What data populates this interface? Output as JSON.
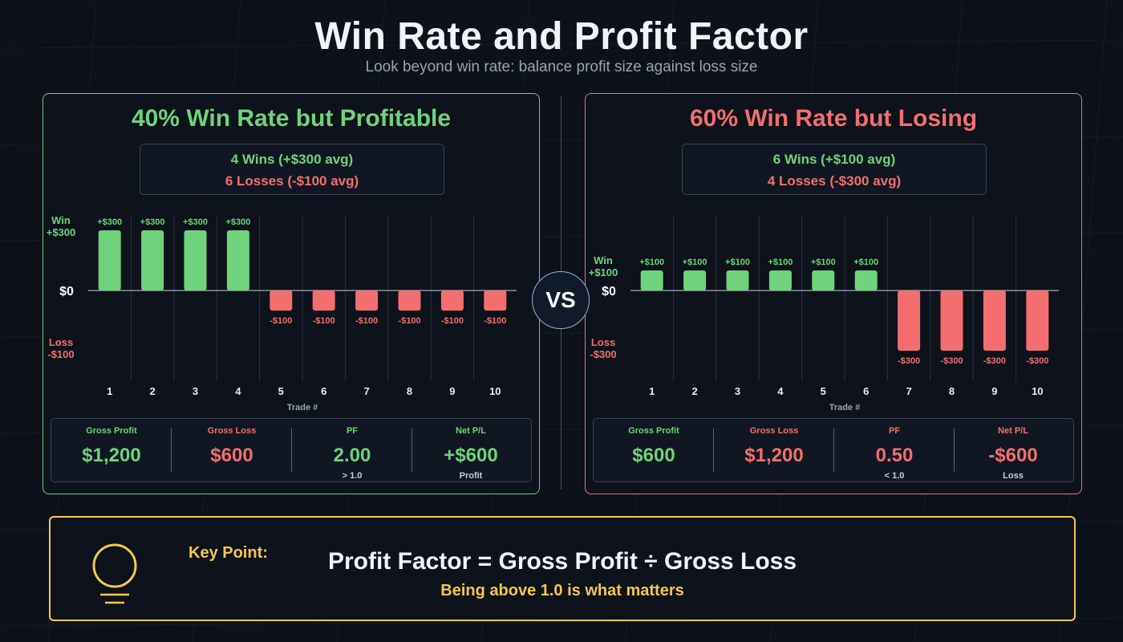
{
  "title": "Win Rate and Profit Factor",
  "subtitle": "Look beyond win rate: balance profit size against loss size",
  "vs_label": "VS",
  "colors": {
    "win": "#6fd37c",
    "loss": "#f36f6f",
    "accent": "#f2c94c",
    "background": "#0c111a"
  },
  "panels": {
    "left": {
      "title": "40% Win Rate but Profitable",
      "summary": {
        "wins": "4 Wins  (+$300 avg)",
        "losses": "6 Losses  (-$100 avg)"
      },
      "stats": [
        {
          "label": "Gross Profit",
          "value": "$1,200",
          "note": ""
        },
        {
          "label": "Gross Loss",
          "value": "$600",
          "note": ""
        },
        {
          "label": "PF",
          "value": "2.00",
          "note": "> 1.0"
        },
        {
          "label": "Net P/L",
          "value": "+$600",
          "note": "Profit"
        }
      ]
    },
    "right": {
      "title": "60% Win Rate but Losing",
      "summary": {
        "wins": "6 Wins  (+$100 avg)",
        "losses": "4 Losses  (-$300 avg)"
      },
      "stats": [
        {
          "label": "Gross Profit",
          "value": "$600",
          "note": ""
        },
        {
          "label": "Gross Loss",
          "value": "$1,200",
          "note": ""
        },
        {
          "label": "PF",
          "value": "0.50",
          "note": "< 1.0"
        },
        {
          "label": "Net P/L",
          "value": "-$600",
          "note": "Loss"
        }
      ]
    }
  },
  "chart_data": [
    {
      "type": "bar",
      "categories": [
        "1",
        "2",
        "3",
        "4",
        "5",
        "6",
        "7",
        "8",
        "9",
        "10"
      ],
      "values": [
        300,
        300,
        300,
        300,
        -100,
        -100,
        -100,
        -100,
        -100,
        -100
      ],
      "data_labels": [
        "+$300",
        "+$300",
        "+$300",
        "+$300",
        "-$100",
        "-$100",
        "-$100",
        "-$100",
        "-$100",
        "-$100"
      ],
      "ylim": [
        -300,
        300
      ],
      "xlabel": "Trade #",
      "zero_label": "$0",
      "y_axis_labels": {
        "win": [
          "Win",
          "+$300"
        ],
        "loss": [
          "Loss",
          "-$100"
        ]
      },
      "grid": true
    },
    {
      "type": "bar",
      "categories": [
        "1",
        "2",
        "3",
        "4",
        "5",
        "6",
        "7",
        "8",
        "9",
        "10"
      ],
      "values": [
        100,
        100,
        100,
        100,
        100,
        100,
        -300,
        -300,
        -300,
        -300
      ],
      "data_labels": [
        "+$100",
        "+$100",
        "+$100",
        "+$100",
        "+$100",
        "+$100",
        "-$300",
        "-$300",
        "-$300",
        "-$300"
      ],
      "ylim": [
        -300,
        300
      ],
      "xlabel": "Trade #",
      "zero_label": "$0",
      "y_axis_labels": {
        "win": [
          "Win",
          "+$100"
        ],
        "loss": [
          "Loss",
          "-$300"
        ]
      },
      "grid": true
    }
  ],
  "key_point": {
    "label": "Key Point:",
    "formula": "Profit Factor = Gross Profit ÷ Gross Loss",
    "note": "Being above 1.0 is what matters",
    "icon": "lightbulb-icon"
  }
}
